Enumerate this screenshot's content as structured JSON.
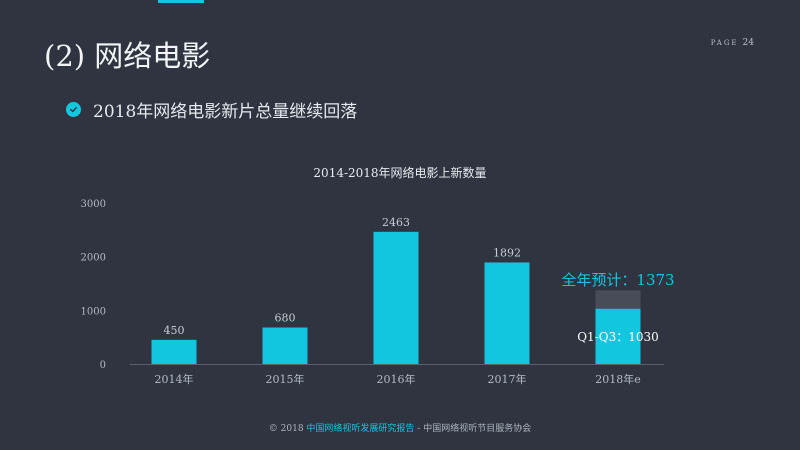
{
  "header": {
    "title": "(2) 网络电影",
    "page_label": "PAGE",
    "page_number": "24"
  },
  "bullet": {
    "text": "2018年网络电影新片总量继续回落"
  },
  "colors": {
    "background": "#2f3440",
    "accent": "#13c6e0",
    "remainder": "#474c58"
  },
  "chart_data": {
    "type": "bar",
    "title": "2014-2018年网络电影上新数量",
    "categories": [
      "2014年",
      "2015年",
      "2016年",
      "2017年",
      "2018年e"
    ],
    "values": [
      450,
      680,
      2463,
      1892,
      1030
    ],
    "value_labels": [
      "450",
      "680",
      "2463",
      "1892",
      ""
    ],
    "estimate": {
      "category": "2018年e",
      "full_year_value": 1373,
      "full_year_label": "全年预计：1373",
      "partial_label": "Q1-Q3：1030"
    },
    "y_ticks": [
      0,
      1000,
      2000,
      3000
    ],
    "ylim": [
      0,
      3000
    ],
    "grid": false,
    "legend": "none"
  },
  "footer": {
    "copyright": "© 2018",
    "report_name": "中国网络视听发展研究报告",
    "separator": " - ",
    "organization": "中国网络视听节目服务协会"
  }
}
